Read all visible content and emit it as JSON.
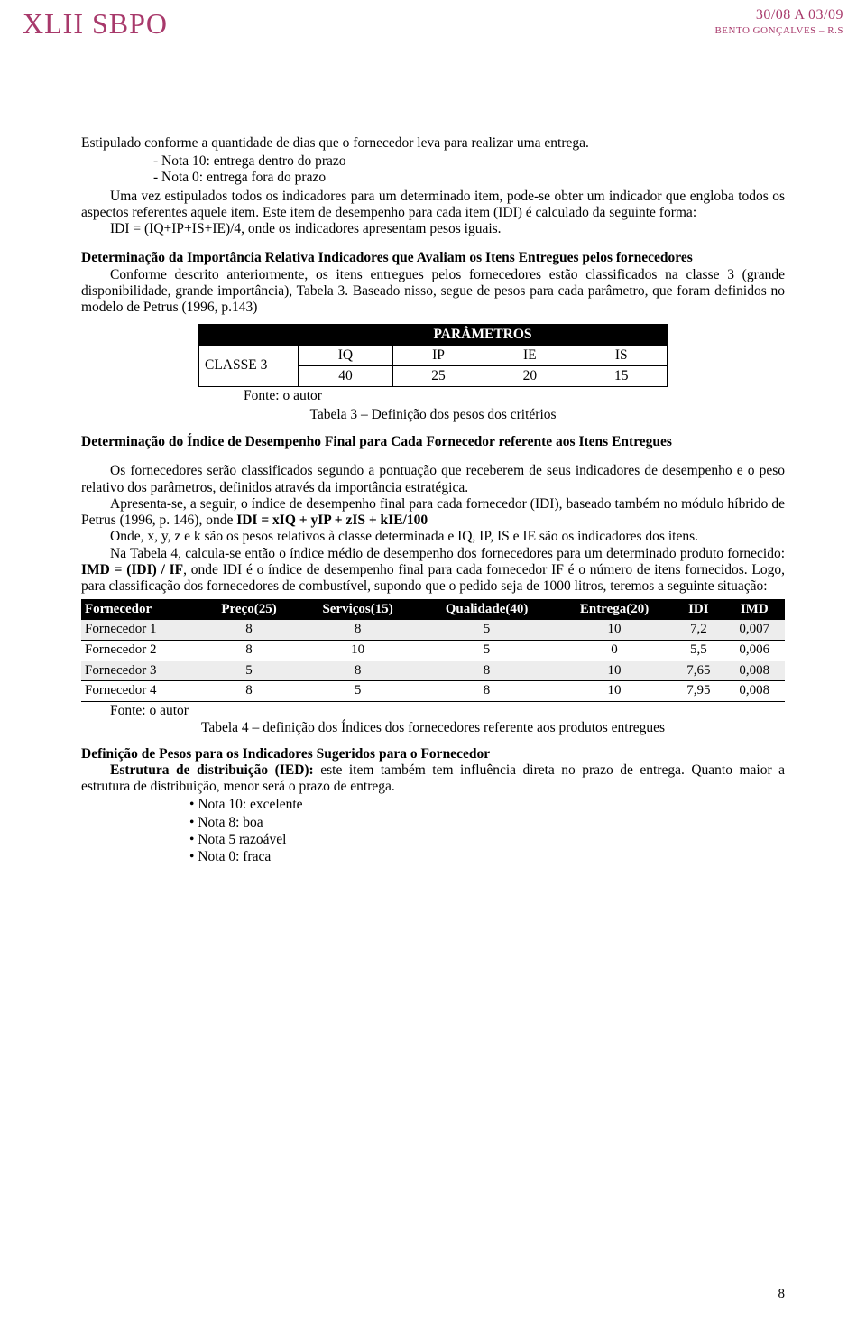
{
  "header": {
    "logo": "XLII SBPO",
    "dates": "30/08 A 03/09",
    "location": "BENTO GONÇALVES – R.S"
  },
  "p1": "Estipulado conforme a quantidade de dias que o fornecedor leva para realizar uma entrega.",
  "bl1": [
    "Nota 10: entrega dentro do prazo",
    "Nota 0: entrega fora do prazo"
  ],
  "p2a": "Uma vez estipulados todos os indicadores para um determinado item, pode-se obter um indicador que engloba todos os aspectos referentes aquele item. Este item de desempenho para cada item (IDI) é calculado da seguinte forma:",
  "p2b": "IDI = (IQ+IP+IS+IE)/4, onde os indicadores apresentam pesos iguais.",
  "h1": "Determinação da Importância Relativa Indicadores que Avaliam os Itens Entregues pelos fornecedores",
  "p3": "Conforme descrito anteriormente, os itens entregues pelos fornecedores estão classificados na classe 3 (grande disponibilidade, grande importância), Tabela 3. Baseado nisso, segue de pesos para cada parâmetro, que foram definidos no modelo de Petrus (1996, p.143)",
  "table3": {
    "param_header": "PARÂMETROS",
    "rowlab": "CLASSE 3",
    "cols": [
      "IQ",
      "IP",
      "IE",
      "IS"
    ],
    "vals": [
      "40",
      "25",
      "20",
      "15"
    ],
    "fonte": "Fonte: o autor",
    "caption": "Tabela 3 – Definição dos pesos dos critérios"
  },
  "h2": "Determinação do Índice de Desempenho Final para Cada Fornecedor referente aos Itens Entregues",
  "p4": "Os fornecedores serão classificados segundo a pontuação que receberem de seus indicadores de desempenho e o peso relativo dos parâmetros, definidos através da importância estratégica.",
  "p5a": "Apresenta-se, a seguir, o índice de desempenho final para cada fornecedor (IDI), baseado também no módulo híbrido de Petrus (1996, p. 146), onde ",
  "p5b": "IDI = xIQ + yIP + zIS + kIE/100",
  "p6": "Onde, x, y, z e k são os pesos relativos à classe determinada e IQ, IP, IS e IE são os indicadores dos itens.",
  "p7a": "Na Tabela 4, calcula-se então o índice médio de desempenho dos fornecedores para um determinado produto fornecido: ",
  "p7b": "IMD = (IDI) / IF",
  "p7c": ", onde IDI é o índice de desempenho final para cada fornecedor IF é o número de itens fornecidos. Logo, para classificação dos fornecedores de combustível, supondo que o pedido seja de 1000 litros, teremos a seguinte situação:",
  "table4": {
    "headers": [
      "Fornecedor",
      "Preço(25)",
      "Serviços(15)",
      "Qualidade(40)",
      "Entrega(20)",
      "IDI",
      "IMD"
    ],
    "rows": [
      {
        "shade": true,
        "cells": [
          "Fornecedor 1",
          "8",
          "8",
          "5",
          "10",
          "7,2",
          "0,007"
        ]
      },
      {
        "shade": false,
        "cells": [
          "Fornecedor 2",
          "8",
          "10",
          "5",
          "0",
          "5,5",
          "0,006"
        ]
      },
      {
        "shade": true,
        "cells": [
          "Fornecedor 3",
          "5",
          "8",
          "8",
          "10",
          "7,65",
          "0,008"
        ]
      },
      {
        "shade": false,
        "cells": [
          "Fornecedor 4",
          "8",
          "5",
          "8",
          "10",
          "7,95",
          "0,008"
        ]
      }
    ],
    "fonte": "Fonte: o autor",
    "caption": "Tabela 4 – definição dos Índices dos fornecedores referente aos produtos entregues"
  },
  "h3": "Definição de Pesos para os Indicadores Sugeridos para o Fornecedor",
  "p8a": "Estrutura de distribuição (IED): ",
  "p8b": "este item também tem influência direta no prazo de entrega. Quanto maior a estrutura de distribuição, menor será o prazo de entrega.",
  "dl1": [
    "Nota 10: excelente",
    "Nota 8: boa",
    "Nota 5 razoável",
    "Nota 0: fraca"
  ],
  "pgnum": "8"
}
